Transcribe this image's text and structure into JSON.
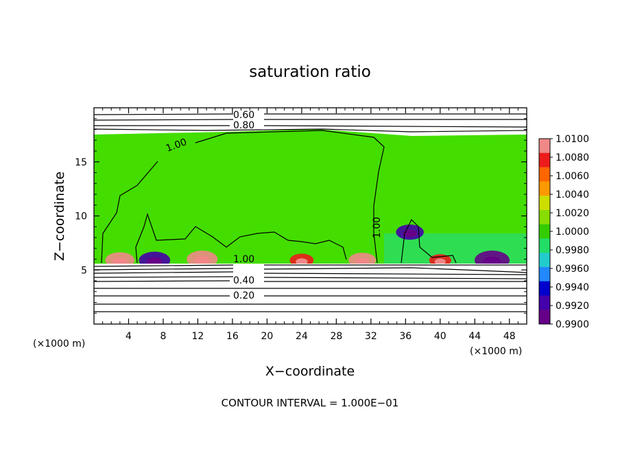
{
  "chart_data": {
    "type": "heatmap",
    "title": "saturation ratio",
    "xlabel": "X−coordinate",
    "ylabel": "Z−coordinate",
    "x_units": "(×1000 m)",
    "footer": "CONTOUR INTERVAL = 1.000E−01",
    "xlim": [
      0,
      50
    ],
    "ylim": [
      0,
      20
    ],
    "x_ticks": [
      4,
      8,
      12,
      16,
      20,
      24,
      28,
      32,
      36,
      40,
      44,
      48
    ],
    "y_ticks": [
      5,
      10,
      15
    ],
    "colorbar": {
      "min": 0.99,
      "max": 1.01,
      "ticks": [
        "1.0100",
        "1.0080",
        "1.0060",
        "1.0040",
        "1.0020",
        "1.0000",
        "0.9980",
        "0.9960",
        "0.9940",
        "0.9920",
        "0.9900"
      ],
      "colors": [
        "#f08888",
        "#ec1c1c",
        "#ff6600",
        "#ff9900",
        "#ccdd00",
        "#88dd00",
        "#33cc00",
        "#22dd66",
        "#22cccc",
        "#2288ff",
        "#0000cc",
        "#4400aa",
        "#660088"
      ]
    },
    "background_value": 1.0008,
    "contour_labels": [
      "0.60",
      "0.80",
      "1.00",
      "1.00",
      "1.00",
      "0.40",
      "0.20"
    ],
    "features": [
      {
        "x": 3.0,
        "z": 5.9,
        "value": 1.009
      },
      {
        "x": 7.0,
        "z": 5.9,
        "value": 0.992
      },
      {
        "x": 12.5,
        "z": 6.0,
        "value": 1.0095
      },
      {
        "x": 24.0,
        "z": 5.9,
        "value": 1.0075
      },
      {
        "x": 31.0,
        "z": 5.9,
        "value": 1.0085
      },
      {
        "x": 40.0,
        "z": 5.9,
        "value": 1.007
      },
      {
        "x": 36.5,
        "z": 8.5,
        "value": 0.993
      },
      {
        "x": 46.0,
        "z": 5.9,
        "value": 0.991
      }
    ]
  }
}
